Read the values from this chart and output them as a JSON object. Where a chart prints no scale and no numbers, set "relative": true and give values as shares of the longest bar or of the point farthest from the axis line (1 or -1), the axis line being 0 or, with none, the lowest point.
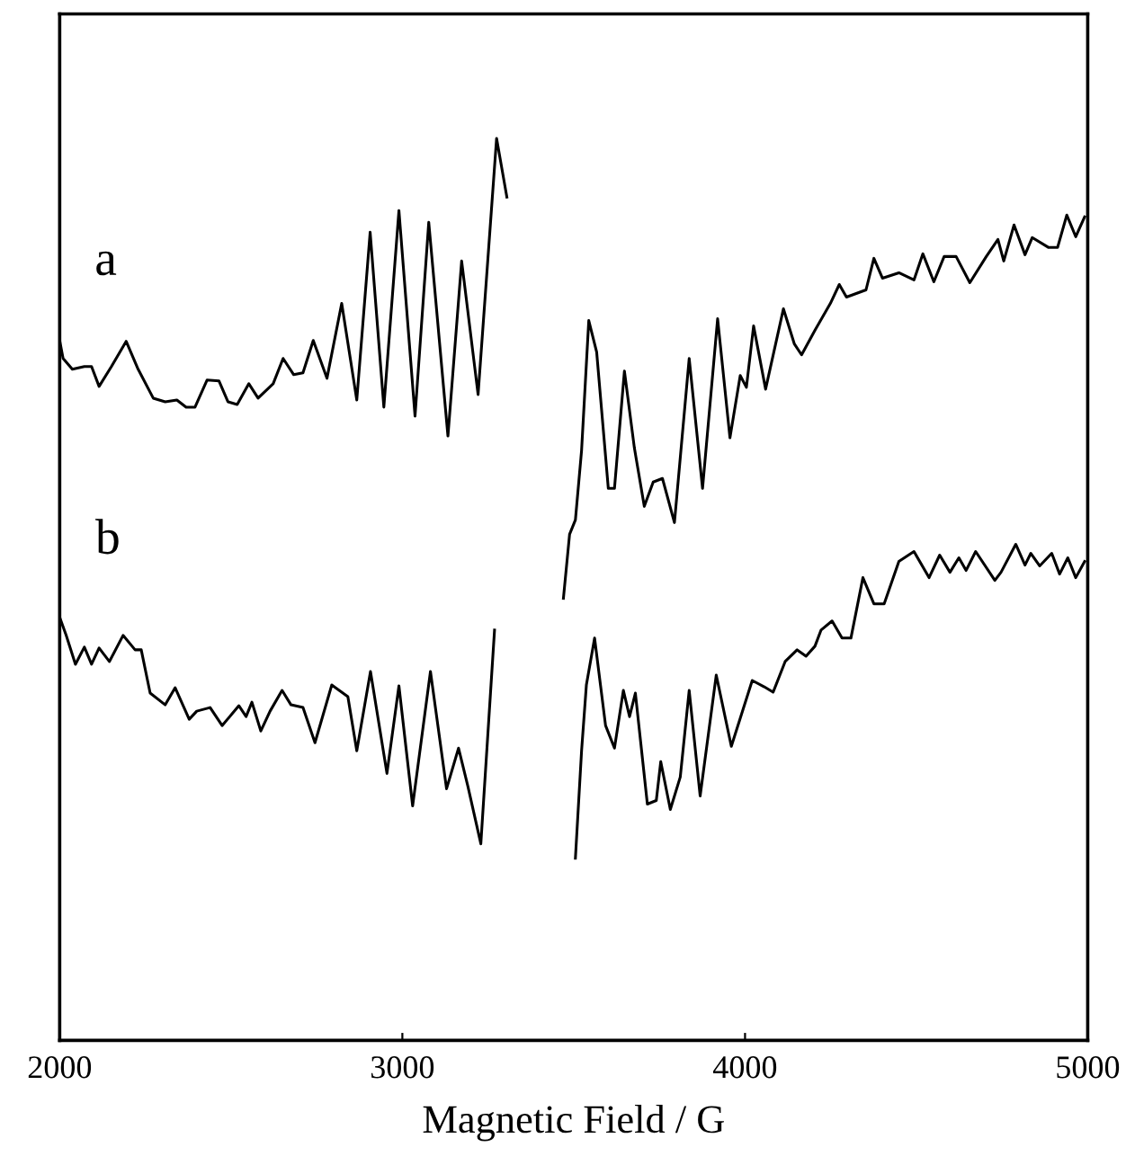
{
  "chart_data": {
    "type": "line",
    "xlabel": "Magnetic Field / G",
    "relative": true,
    "xlim": [
      2000,
      5000
    ],
    "xticks": [
      2000,
      3000,
      4000,
      5000
    ],
    "grid": false,
    "legend": false,
    "marker": "none",
    "line_style": "solid",
    "series": [
      {
        "name": "a",
        "color": "#000000",
        "x": [
          2000,
          2010,
          2037,
          2072,
          2093,
          2115,
          2151,
          2194,
          2229,
          2273,
          2308,
          2342,
          2369,
          2395,
          2430,
          2465,
          2491,
          2518,
          2552,
          2579,
          2623,
          2652,
          2683,
          2710,
          2740,
          2780,
          2823,
          2867,
          2906,
          2946,
          2990,
          3037,
          3077,
          3133,
          3173,
          3221,
          3275,
          3305,
          3400,
          3470,
          3488,
          3505,
          3523,
          3544,
          3567,
          3601,
          3619,
          3648,
          3677,
          3706,
          3732,
          3759,
          3794,
          3837,
          3876,
          3920,
          3956,
          3986,
          4004,
          4025,
          4060,
          4112,
          4144,
          4165,
          4205,
          4249,
          4275,
          4296,
          4353,
          4376,
          4401,
          4449,
          4493,
          4519,
          4551,
          4581,
          4616,
          4656,
          4704,
          4738,
          4755,
          4785,
          4817,
          4838,
          4886,
          4912,
          4939,
          4965,
          4991
        ],
        "values": [
          0.776,
          0.756,
          0.744,
          0.747,
          0.747,
          0.725,
          0.747,
          0.775,
          0.744,
          0.712,
          0.708,
          0.71,
          0.702,
          0.702,
          0.732,
          0.731,
          0.708,
          0.705,
          0.728,
          0.712,
          0.728,
          0.756,
          0.738,
          0.74,
          0.776,
          0.734,
          0.817,
          0.71,
          0.896,
          0.702,
          0.92,
          0.692,
          0.907,
          0.67,
          0.864,
          0.716,
          1.0,
          0.935,
          null,
          0.49,
          0.561,
          0.577,
          0.654,
          0.798,
          0.763,
          0.612,
          0.612,
          0.742,
          0.657,
          0.592,
          0.619,
          0.623,
          0.574,
          0.756,
          0.612,
          0.8,
          0.668,
          0.737,
          0.724,
          0.792,
          0.722,
          0.811,
          0.772,
          0.76,
          0.788,
          0.817,
          0.838,
          0.824,
          0.832,
          0.867,
          0.845,
          0.851,
          0.843,
          0.872,
          0.841,
          0.869,
          0.869,
          0.84,
          0.869,
          0.888,
          0.864,
          0.904,
          0.871,
          0.89,
          0.879,
          0.879,
          0.915,
          0.891,
          0.913
        ]
      },
      {
        "name": "b",
        "color": "#000000",
        "x": [
          2002,
          2019,
          2046,
          2072,
          2093,
          2115,
          2145,
          2185,
          2220,
          2238,
          2264,
          2308,
          2337,
          2378,
          2400,
          2439,
          2474,
          2523,
          2544,
          2561,
          2587,
          2614,
          2649,
          2675,
          2710,
          2745,
          2794,
          2841,
          2867,
          2907,
          2955,
          2990,
          3030,
          3082,
          3129,
          3164,
          3191,
          3229,
          3269,
          3400,
          3505,
          3523,
          3537,
          3561,
          3593,
          3619,
          3645,
          3663,
          3680,
          3715,
          3741,
          3754,
          3782,
          3811,
          3837,
          3869,
          3916,
          3960,
          4021,
          4056,
          4082,
          4117,
          4152,
          4178,
          4204,
          4222,
          4254,
          4283,
          4309,
          4344,
          4376,
          4406,
          4449,
          4493,
          4537,
          4568,
          4598,
          4624,
          4645,
          4673,
          4729,
          4747,
          4790,
          4817,
          4834,
          4860,
          4895,
          4918,
          4942,
          4965,
          4991
        ],
        "values": [
          0.467,
          0.449,
          0.417,
          0.436,
          0.417,
          0.435,
          0.42,
          0.449,
          0.433,
          0.433,
          0.385,
          0.372,
          0.391,
          0.356,
          0.365,
          0.369,
          0.349,
          0.371,
          0.359,
          0.375,
          0.343,
          0.365,
          0.388,
          0.372,
          0.369,
          0.33,
          0.394,
          0.381,
          0.321,
          0.409,
          0.296,
          0.393,
          0.26,
          0.409,
          0.279,
          0.324,
          0.282,
          0.218,
          0.455,
          null,
          0.202,
          0.321,
          0.394,
          0.446,
          0.349,
          0.324,
          0.388,
          0.359,
          0.385,
          0.262,
          0.266,
          0.309,
          0.256,
          0.292,
          0.388,
          0.271,
          0.405,
          0.326,
          0.399,
          0.392,
          0.386,
          0.42,
          0.433,
          0.426,
          0.437,
          0.455,
          0.465,
          0.446,
          0.446,
          0.513,
          0.484,
          0.484,
          0.531,
          0.542,
          0.513,
          0.538,
          0.519,
          0.535,
          0.521,
          0.542,
          0.51,
          0.519,
          0.55,
          0.527,
          0.54,
          0.526,
          0.54,
          0.517,
          0.535,
          0.513,
          0.531
        ]
      }
    ]
  }
}
